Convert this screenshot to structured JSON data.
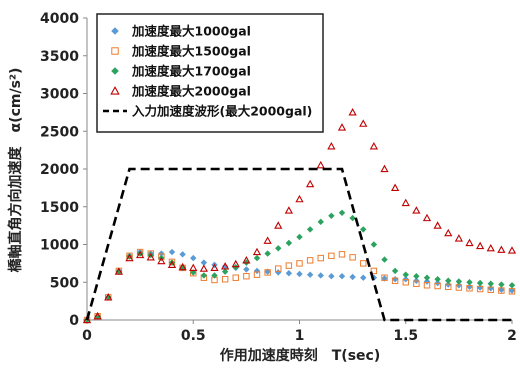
{
  "chart_data": {
    "type": "scatter",
    "title": "",
    "xlabel": "作用加速度時刻　T(sec)",
    "ylabel": "橋軸直角方向加速度　α(cm/s²)",
    "xlim": [
      0,
      2
    ],
    "ylim": [
      0,
      4000
    ],
    "x_ticks": [
      "0",
      "0.5",
      "1",
      "1.5",
      "2"
    ],
    "y_ticks": [
      "0",
      "500",
      "1000",
      "1500",
      "2000",
      "2500",
      "3000",
      "3500",
      "4000"
    ],
    "grid": false,
    "legend_position": "top-left",
    "series": [
      {
        "name": "加速度最大1000gal",
        "marker": "diamond",
        "color": "#5b9bd5",
        "x": [
          0.0,
          0.05,
          0.1,
          0.15,
          0.2,
          0.25,
          0.3,
          0.35,
          0.4,
          0.45,
          0.5,
          0.55,
          0.6,
          0.65,
          0.7,
          0.75,
          0.8,
          0.85,
          0.9,
          0.95,
          1.0,
          1.05,
          1.1,
          1.15,
          1.2,
          1.25,
          1.3,
          1.35,
          1.4,
          1.45,
          1.5,
          1.55,
          1.6,
          1.65,
          1.7,
          1.75,
          1.8,
          1.85,
          1.9,
          1.95,
          2.0
        ],
        "y": [
          0,
          50,
          300,
          650,
          850,
          900,
          880,
          880,
          900,
          870,
          820,
          760,
          730,
          710,
          690,
          670,
          650,
          640,
          630,
          620,
          610,
          600,
          590,
          580,
          580,
          570,
          560,
          560,
          550,
          540,
          540,
          520,
          510,
          490,
          470,
          460,
          440,
          430,
          420,
          400,
          390
        ]
      },
      {
        "name": "加速度最大1500gal",
        "marker": "square-open",
        "color": "#ed7d31",
        "x": [
          0.0,
          0.05,
          0.1,
          0.15,
          0.2,
          0.25,
          0.3,
          0.35,
          0.4,
          0.45,
          0.5,
          0.55,
          0.6,
          0.65,
          0.7,
          0.75,
          0.8,
          0.85,
          0.9,
          0.95,
          1.0,
          1.05,
          1.1,
          1.15,
          1.2,
          1.25,
          1.3,
          1.35,
          1.4,
          1.45,
          1.5,
          1.55,
          1.6,
          1.65,
          1.7,
          1.75,
          1.8,
          1.85,
          1.9,
          1.95,
          2.0
        ],
        "y": [
          0,
          50,
          300,
          650,
          850,
          900,
          880,
          840,
          770,
          690,
          620,
          560,
          530,
          540,
          560,
          580,
          600,
          630,
          680,
          720,
          750,
          790,
          820,
          850,
          870,
          830,
          750,
          650,
          560,
          520,
          500,
          480,
          460,
          450,
          440,
          430,
          420,
          410,
          400,
          390,
          380
        ]
      },
      {
        "name": "加速度最大1700gal",
        "marker": "diamond",
        "color": "#2ca25f",
        "x": [
          0.0,
          0.05,
          0.1,
          0.15,
          0.2,
          0.25,
          0.3,
          0.35,
          0.4,
          0.45,
          0.5,
          0.55,
          0.6,
          0.65,
          0.7,
          0.75,
          0.8,
          0.85,
          0.9,
          0.95,
          1.0,
          1.05,
          1.1,
          1.15,
          1.2,
          1.25,
          1.3,
          1.35,
          1.4,
          1.45,
          1.5,
          1.55,
          1.6,
          1.65,
          1.7,
          1.75,
          1.8,
          1.85,
          1.9,
          1.95,
          2.0
        ],
        "y": [
          0,
          50,
          300,
          640,
          840,
          880,
          860,
          820,
          760,
          690,
          630,
          590,
          590,
          640,
          700,
          760,
          820,
          880,
          950,
          1020,
          1100,
          1200,
          1300,
          1380,
          1420,
          1350,
          1200,
          1000,
          800,
          650,
          600,
          580,
          560,
          540,
          520,
          510,
          500,
          490,
          480,
          470,
          460
        ]
      },
      {
        "name": "加速度最大2000gal",
        "marker": "triangle-open",
        "color": "#c00000",
        "x": [
          0.0,
          0.05,
          0.1,
          0.15,
          0.2,
          0.25,
          0.3,
          0.35,
          0.4,
          0.45,
          0.5,
          0.55,
          0.6,
          0.65,
          0.7,
          0.75,
          0.8,
          0.85,
          0.9,
          0.95,
          1.0,
          1.05,
          1.1,
          1.15,
          1.2,
          1.25,
          1.3,
          1.35,
          1.4,
          1.45,
          1.5,
          1.55,
          1.6,
          1.65,
          1.7,
          1.75,
          1.8,
          1.85,
          1.9,
          1.95,
          2.0
        ],
        "y": [
          0,
          50,
          300,
          640,
          820,
          860,
          830,
          780,
          730,
          700,
          690,
          680,
          690,
          710,
          740,
          790,
          900,
          1050,
          1250,
          1450,
          1600,
          1800,
          2050,
          2300,
          2550,
          2750,
          2600,
          2300,
          2000,
          1750,
          1550,
          1450,
          1350,
          1250,
          1150,
          1080,
          1020,
          980,
          950,
          930,
          920
        ]
      },
      {
        "name": "入力加速度波形(最大2000gal)",
        "type": "line",
        "style": "dashed",
        "color": "#000000",
        "x": [
          0.0,
          0.2,
          1.2,
          1.4,
          2.0
        ],
        "y": [
          0,
          2000,
          2000,
          0,
          0
        ]
      }
    ]
  }
}
